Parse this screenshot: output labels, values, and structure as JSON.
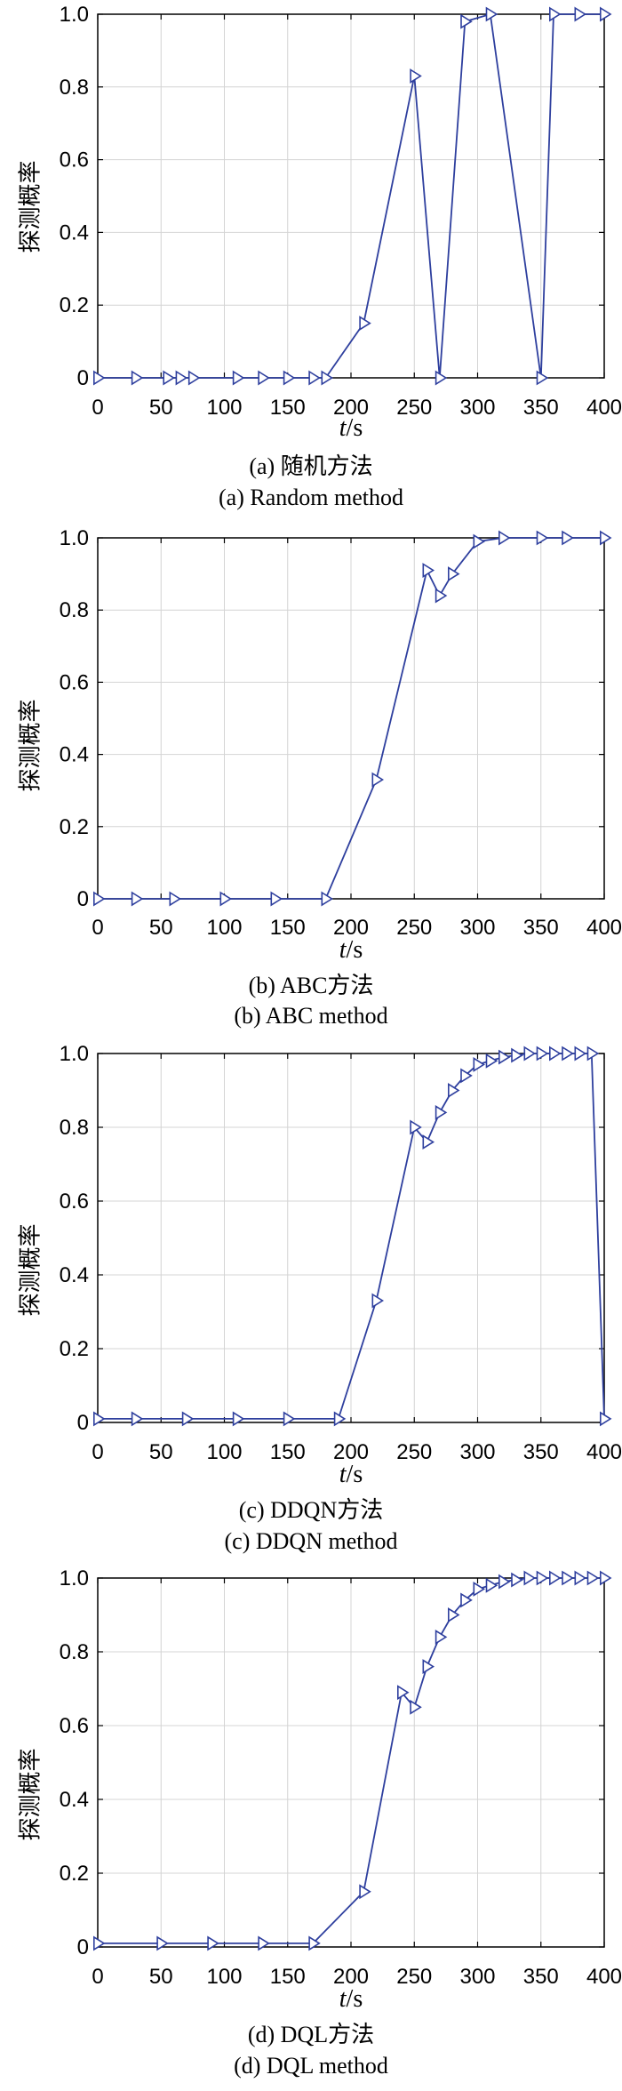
{
  "chart_data": [
    {
      "type": "line",
      "caption_zh": "(a) 随机方法",
      "caption_en": "(a) Random method",
      "xlabel": "t/s",
      "ylabel": "探测概率",
      "xlim": [
        0,
        400
      ],
      "ylim": [
        0,
        1.0
      ],
      "xticks": [
        "0",
        "50",
        "100",
        "150",
        "200",
        "250",
        "300",
        "350",
        "400"
      ],
      "yticks": [
        "0",
        "0.2",
        "0.4",
        "0.6",
        "0.8",
        "1.0"
      ],
      "grid": true,
      "color": "#2e3f9e",
      "marker": "triangle-right",
      "x": [
        0,
        30,
        55,
        65,
        75,
        110,
        130,
        150,
        170,
        180,
        210,
        250,
        270,
        290,
        310,
        350,
        360,
        380,
        400
      ],
      "y": [
        0,
        0,
        0,
        0,
        0,
        0,
        0,
        0,
        0,
        0,
        0.15,
        0.83,
        0,
        0.98,
        1.0,
        0,
        1.0,
        1.0,
        1.0
      ]
    },
    {
      "type": "line",
      "caption_zh": "(b) ABC方法",
      "caption_en": "(b) ABC method",
      "xlabel": "t/s",
      "ylabel": "探测概率",
      "xlim": [
        0,
        400
      ],
      "ylim": [
        0,
        1.0
      ],
      "xticks": [
        "0",
        "50",
        "100",
        "150",
        "200",
        "250",
        "300",
        "350",
        "400"
      ],
      "yticks": [
        "0",
        "0.2",
        "0.4",
        "0.6",
        "0.8",
        "1.0"
      ],
      "grid": true,
      "color": "#2e3f9e",
      "marker": "triangle-right",
      "x": [
        0,
        30,
        60,
        100,
        140,
        180,
        220,
        260,
        270,
        280,
        300,
        320,
        350,
        370,
        400
      ],
      "y": [
        0,
        0,
        0,
        0,
        0,
        0,
        0.33,
        0.91,
        0.84,
        0.9,
        0.99,
        1.0,
        1.0,
        1.0,
        1.0
      ]
    },
    {
      "type": "line",
      "caption_zh": "(c) DDQN方法",
      "caption_en": "(c) DDQN method",
      "xlabel": "t/s",
      "ylabel": "探测概率",
      "xlim": [
        0,
        400
      ],
      "ylim": [
        0,
        1.0
      ],
      "xticks": [
        "0",
        "50",
        "100",
        "150",
        "200",
        "250",
        "300",
        "350",
        "400"
      ],
      "yticks": [
        "0",
        "0.2",
        "0.4",
        "0.6",
        "0.8",
        "1.0"
      ],
      "grid": true,
      "color": "#2e3f9e",
      "marker": "triangle-right",
      "x": [
        0,
        30,
        70,
        110,
        150,
        190,
        220,
        250,
        260,
        270,
        280,
        290,
        300,
        310,
        320,
        330,
        340,
        350,
        360,
        370,
        380,
        390,
        400
      ],
      "y": [
        0.01,
        0.01,
        0.01,
        0.01,
        0.01,
        0.01,
        0.33,
        0.8,
        0.76,
        0.84,
        0.9,
        0.94,
        0.97,
        0.98,
        0.99,
        0.995,
        1.0,
        1.0,
        1.0,
        1.0,
        1.0,
        1.0,
        0.01
      ]
    },
    {
      "type": "line",
      "caption_zh": "(d) DQL方法",
      "caption_en": "(d) DQL method",
      "xlabel": "t/s",
      "ylabel": "探测概率",
      "xlim": [
        0,
        400
      ],
      "ylim": [
        0,
        1.0
      ],
      "xticks": [
        "0",
        "50",
        "100",
        "150",
        "200",
        "250",
        "300",
        "350",
        "400"
      ],
      "yticks": [
        "0",
        "0.2",
        "0.4",
        "0.6",
        "0.8",
        "1.0"
      ],
      "grid": true,
      "color": "#2e3f9e",
      "marker": "triangle-right",
      "x": [
        0,
        50,
        90,
        130,
        170,
        210,
        240,
        250,
        260,
        270,
        280,
        290,
        300,
        310,
        320,
        330,
        340,
        350,
        360,
        370,
        380,
        390,
        400
      ],
      "y": [
        0.01,
        0.01,
        0.01,
        0.01,
        0.01,
        0.15,
        0.69,
        0.65,
        0.76,
        0.84,
        0.9,
        0.94,
        0.97,
        0.98,
        0.99,
        0.995,
        1.0,
        1.0,
        1.0,
        1.0,
        1.0,
        1.0,
        1.0
      ]
    }
  ]
}
